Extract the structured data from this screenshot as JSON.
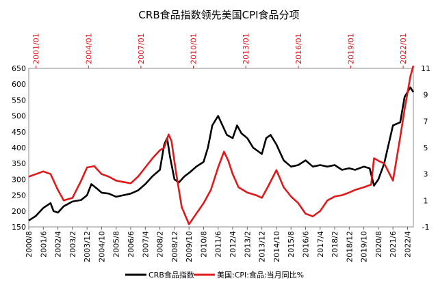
{
  "chart_data": {
    "type": "line",
    "title": "CRB食品指数领先美国CPI食品分项",
    "left_axis": {
      "range": [
        150,
        650
      ],
      "ticks": [
        "150",
        "200",
        "250",
        "300",
        "350",
        "400",
        "450",
        "500",
        "550",
        "600",
        "650"
      ]
    },
    "right_axis": {
      "range": [
        -1,
        11
      ],
      "ticks": [
        "-1",
        "1",
        "3",
        "5",
        "7",
        "9",
        "11"
      ]
    },
    "bottom_axis_labels": [
      "2000/8",
      "2001/6",
      "2002/4",
      "2003/2",
      "2003/12",
      "2004/10",
      "2005/8",
      "2006/6",
      "2007/4",
      "2008/2",
      "2008/12",
      "2009/10",
      "2010/8",
      "2011/6",
      "2012/4",
      "2013/2",
      "2013/12",
      "2014/10",
      "2015/8",
      "2016/6",
      "2017/4",
      "2018/2",
      "2018/12",
      "2019/10",
      "2020/8",
      "2021/6",
      "2022/4"
    ],
    "top_axis_labels": [
      "2001/01",
      "2004/01",
      "2007/01",
      "2010/01",
      "2013/01",
      "2016/01",
      "2019/01",
      "2022/01"
    ],
    "colors": {
      "crb": "#000000",
      "cpi": "#e0191b"
    },
    "series": [
      {
        "name": "CRB食品指数",
        "axis": "left",
        "points": [
          [
            "2000/8",
            170
          ],
          [
            "2001/1",
            185
          ],
          [
            "2001/6",
            210
          ],
          [
            "2001/11",
            225
          ],
          [
            "2002/1",
            200
          ],
          [
            "2002/4",
            195
          ],
          [
            "2002/8",
            215
          ],
          [
            "2003/2",
            230
          ],
          [
            "2003/8",
            235
          ],
          [
            "2003/12",
            250
          ],
          [
            "2004/3",
            285
          ],
          [
            "2004/7",
            270
          ],
          [
            "2004/10",
            258
          ],
          [
            "2005/3",
            255
          ],
          [
            "2005/8",
            245
          ],
          [
            "2006/1",
            250
          ],
          [
            "2006/6",
            255
          ],
          [
            "2006/11",
            265
          ],
          [
            "2007/4",
            285
          ],
          [
            "2007/9",
            310
          ],
          [
            "2008/2",
            330
          ],
          [
            "2008/5",
            410
          ],
          [
            "2008/7",
            430
          ],
          [
            "2008/9",
            370
          ],
          [
            "2008/12",
            300
          ],
          [
            "2009/3",
            290
          ],
          [
            "2009/7",
            310
          ],
          [
            "2009/10",
            320
          ],
          [
            "2010/3",
            340
          ],
          [
            "2010/8",
            355
          ],
          [
            "2010/11",
            400
          ],
          [
            "2011/2",
            470
          ],
          [
            "2011/6",
            500
          ],
          [
            "2011/9",
            470
          ],
          [
            "2011/12",
            440
          ],
          [
            "2012/4",
            430
          ],
          [
            "2012/7",
            470
          ],
          [
            "2012/10",
            445
          ],
          [
            "2013/2",
            430
          ],
          [
            "2013/6",
            400
          ],
          [
            "2013/12",
            380
          ],
          [
            "2014/3",
            430
          ],
          [
            "2014/6",
            440
          ],
          [
            "2014/10",
            410
          ],
          [
            "2015/3",
            360
          ],
          [
            "2015/8",
            340
          ],
          [
            "2016/1",
            345
          ],
          [
            "2016/6",
            360
          ],
          [
            "2016/11",
            340
          ],
          [
            "2017/4",
            345
          ],
          [
            "2017/9",
            340
          ],
          [
            "2018/2",
            345
          ],
          [
            "2018/7",
            330
          ],
          [
            "2018/12",
            335
          ],
          [
            "2019/4",
            330
          ],
          [
            "2019/10",
            340
          ],
          [
            "2020/2",
            335
          ],
          [
            "2020/5",
            280
          ],
          [
            "2020/8",
            300
          ],
          [
            "2020/12",
            350
          ],
          [
            "2021/6",
            470
          ],
          [
            "2021/11",
            480
          ],
          [
            "2022/2",
            560
          ],
          [
            "2022/6",
            590
          ],
          [
            "2022/8",
            575
          ]
        ]
      },
      {
        "name": "美国:CPI:食品:当月同比%",
        "axis": "right",
        "points": [
          [
            "2000/8",
            2.8
          ],
          [
            "2001/1",
            3.0
          ],
          [
            "2001/6",
            3.2
          ],
          [
            "2001/11",
            3.0
          ],
          [
            "2002/4",
            1.8
          ],
          [
            "2002/8",
            1.0
          ],
          [
            "2003/2",
            1.2
          ],
          [
            "2003/8",
            2.5
          ],
          [
            "2003/12",
            3.5
          ],
          [
            "2004/5",
            3.6
          ],
          [
            "2004/10",
            3.0
          ],
          [
            "2005/3",
            2.8
          ],
          [
            "2005/8",
            2.5
          ],
          [
            "2006/1",
            2.4
          ],
          [
            "2006/6",
            2.3
          ],
          [
            "2006/11",
            2.8
          ],
          [
            "2007/4",
            3.5
          ],
          [
            "2007/9",
            4.2
          ],
          [
            "2008/2",
            4.8
          ],
          [
            "2008/5",
            5.0
          ],
          [
            "2008/8",
            6.0
          ],
          [
            "2008/10",
            5.5
          ],
          [
            "2009/1",
            3.2
          ],
          [
            "2009/5",
            0.5
          ],
          [
            "2009/10",
            -0.8
          ],
          [
            "2010/3",
            0.0
          ],
          [
            "2010/8",
            0.8
          ],
          [
            "2011/1",
            1.8
          ],
          [
            "2011/6",
            3.5
          ],
          [
            "2011/10",
            4.7
          ],
          [
            "2012/1",
            4.0
          ],
          [
            "2012/4",
            3.0
          ],
          [
            "2012/8",
            2.0
          ],
          [
            "2013/2",
            1.6
          ],
          [
            "2013/8",
            1.4
          ],
          [
            "2013/12",
            1.2
          ],
          [
            "2014/4",
            2.0
          ],
          [
            "2014/10",
            3.3
          ],
          [
            "2015/3",
            2.0
          ],
          [
            "2015/8",
            1.3
          ],
          [
            "2016/1",
            0.8
          ],
          [
            "2016/6",
            0.0
          ],
          [
            "2016/11",
            -0.2
          ],
          [
            "2017/4",
            0.2
          ],
          [
            "2017/9",
            1.0
          ],
          [
            "2018/2",
            1.3
          ],
          [
            "2018/7",
            1.4
          ],
          [
            "2018/12",
            1.6
          ],
          [
            "2019/4",
            1.8
          ],
          [
            "2019/10",
            2.0
          ],
          [
            "2020/3",
            2.2
          ],
          [
            "2020/5",
            4.2
          ],
          [
            "2020/8",
            4.0
          ],
          [
            "2020/12",
            3.8
          ],
          [
            "2021/6",
            2.5
          ],
          [
            "2021/11",
            5.8
          ],
          [
            "2022/2",
            7.9
          ],
          [
            "2022/6",
            10.4
          ],
          [
            "2022/8",
            11.2
          ]
        ]
      }
    ]
  }
}
